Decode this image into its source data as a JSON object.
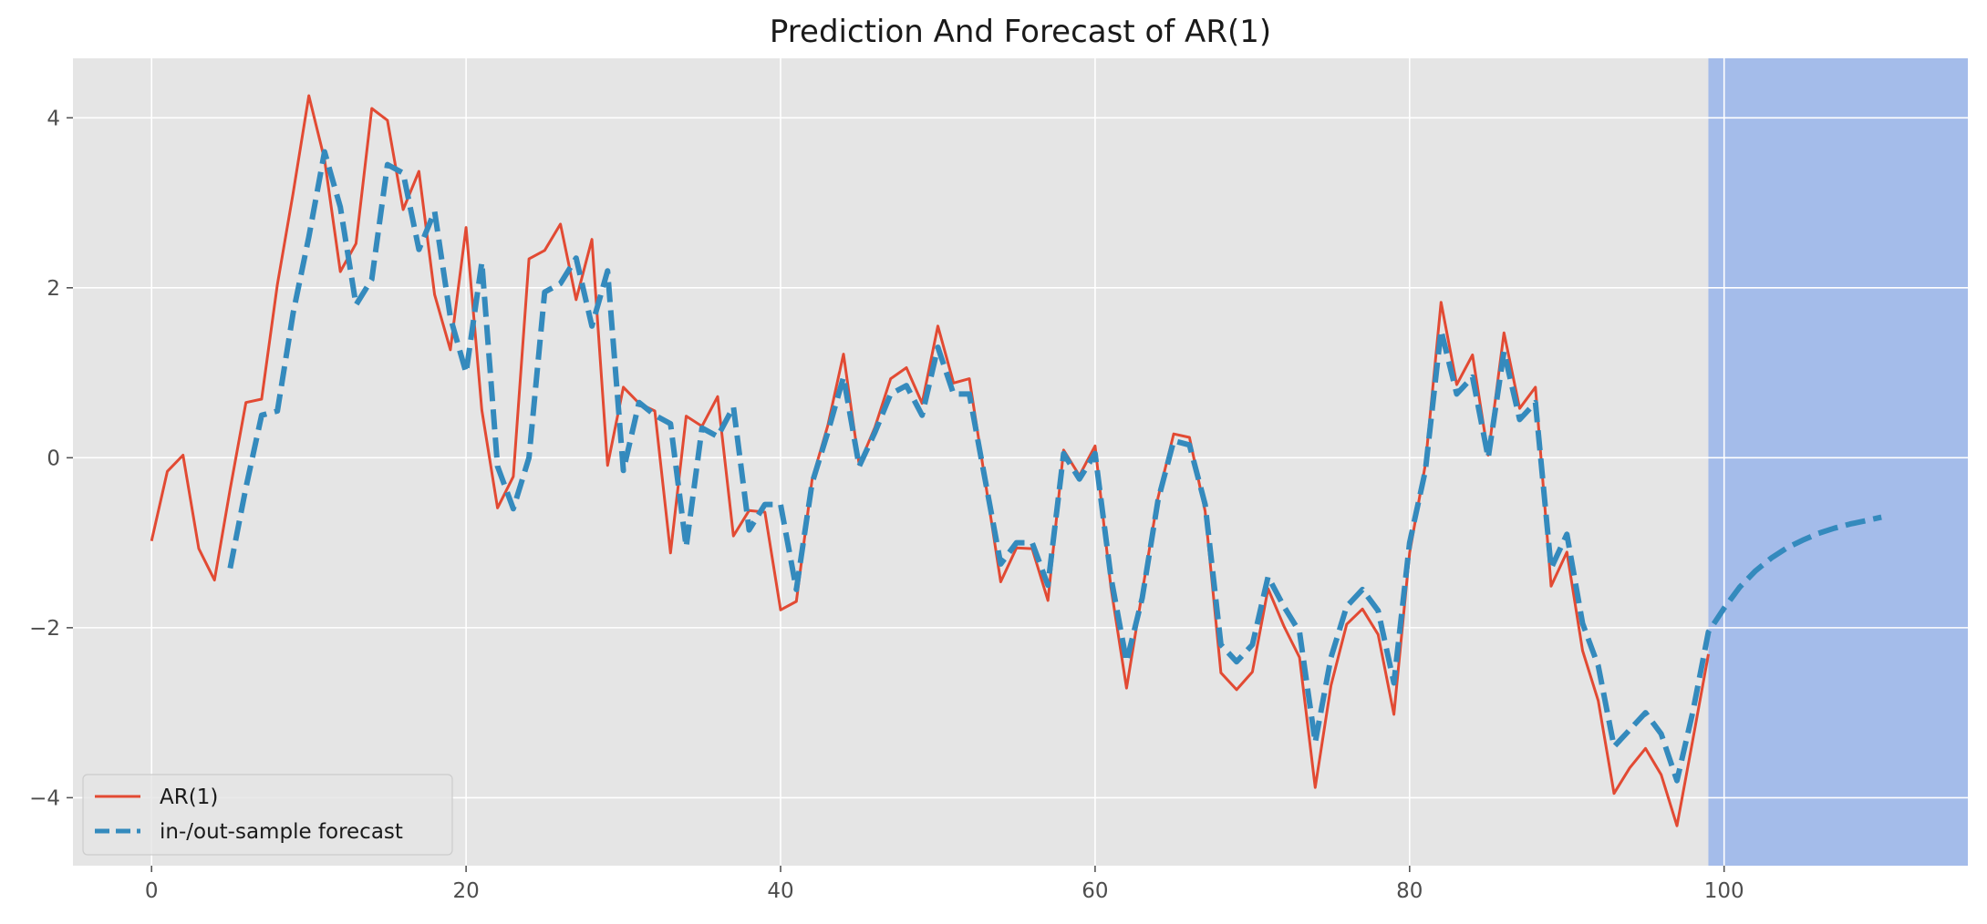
{
  "chart_data": {
    "type": "line",
    "title": "Prediction And Forecast of AR(1)",
    "xlabel": "",
    "ylabel": "",
    "xlim": [
      -5,
      115.5
    ],
    "ylim": [
      -4.8,
      4.7
    ],
    "x_ticks": [
      0,
      20,
      40,
      60,
      80,
      100
    ],
    "x_tick_labels": [
      "0",
      "20",
      "40",
      "60",
      "80",
      "100"
    ],
    "y_ticks": [
      4,
      2,
      0,
      -2,
      -4
    ],
    "y_tick_labels": [
      "4",
      "2",
      "0",
      "−2",
      "−4"
    ],
    "grid": true,
    "legend_position": "lower-left",
    "forecast_region": {
      "x_start": 99,
      "x_end": 115.5,
      "color": "#a4bcea"
    },
    "colors": {
      "ar": "#e24a33",
      "forecast": "#348abd",
      "plot_background": "#e5e5e5",
      "grid": "#ffffff"
    },
    "series": [
      {
        "name": "AR(1)",
        "style": "solid",
        "x_start": 0,
        "values": [
          -0.98,
          -0.16,
          0.03,
          -1.07,
          -1.44,
          -0.37,
          0.65,
          0.69,
          2.04,
          3.11,
          4.26,
          3.51,
          2.19,
          2.52,
          4.11,
          3.97,
          2.92,
          3.37,
          1.92,
          1.27,
          2.71,
          0.56,
          -0.59,
          -0.22,
          2.34,
          2.44,
          2.75,
          1.86,
          2.57,
          -0.09,
          0.83,
          0.64,
          0.55,
          -1.12,
          0.49,
          0.37,
          0.72,
          -0.92,
          -0.62,
          -0.64,
          -1.79,
          -1.69,
          -0.26,
          0.38,
          1.22,
          -0.08,
          0.36,
          0.93,
          1.06,
          0.64,
          1.55,
          0.88,
          0.93,
          -0.26,
          -1.46,
          -1.06,
          -1.07,
          -1.68,
          0.09,
          -0.21,
          0.14,
          -1.52,
          -2.71,
          -1.58,
          -0.47,
          0.28,
          0.24,
          -0.63,
          -2.53,
          -2.73,
          -2.52,
          -1.54,
          -1.98,
          -2.35,
          -3.88,
          -2.68,
          -1.96,
          -1.78,
          -2.08,
          -3.02,
          -1.12,
          -0.08,
          1.83,
          0.86,
          1.21,
          0.03,
          1.47,
          0.58,
          0.83,
          -1.51,
          -1.11,
          -2.27,
          -2.86,
          -3.95,
          -3.65,
          -3.42,
          -3.73,
          -4.33,
          -3.33,
          -2.31
        ]
      },
      {
        "name": "in-/out-sample forecast",
        "style": "dashed",
        "x_start": 5,
        "values": [
          -1.3,
          -0.35,
          0.5,
          0.55,
          1.7,
          2.6,
          3.6,
          2.95,
          1.8,
          2.1,
          3.45,
          3.35,
          2.45,
          2.9,
          1.65,
          1.0,
          2.3,
          -0.1,
          -0.6,
          0.0,
          1.95,
          2.05,
          2.35,
          1.55,
          2.2,
          -0.15,
          0.65,
          0.5,
          0.4,
          -1.05,
          0.35,
          0.25,
          0.6,
          -0.85,
          -0.55,
          -0.55,
          -1.55,
          -0.3,
          0.3,
          0.95,
          -0.1,
          0.3,
          0.75,
          0.85,
          0.5,
          1.3,
          0.75,
          0.75,
          -0.25,
          -1.25,
          -1.0,
          -1.0,
          -1.5,
          0.05,
          -0.25,
          0.05,
          -1.4,
          -2.4,
          -1.65,
          -0.5,
          0.2,
          0.15,
          -0.55,
          -2.2,
          -2.4,
          -2.2,
          -1.4,
          -1.75,
          -2.05,
          -3.35,
          -2.35,
          -1.75,
          -1.55,
          -1.8,
          -2.65,
          -1.0,
          -0.15,
          1.5,
          0.75,
          0.95,
          0.0,
          1.25,
          0.45,
          0.65,
          -1.3,
          -0.9,
          -1.95,
          -2.45,
          -3.4,
          -3.2,
          -3.0,
          -3.25,
          -3.8,
          -3.0,
          -2.05,
          -1.77,
          -1.52,
          -1.33,
          -1.18,
          -1.06,
          -0.97,
          -0.89,
          -0.83,
          -0.78,
          -0.74,
          -0.7
        ]
      }
    ]
  }
}
